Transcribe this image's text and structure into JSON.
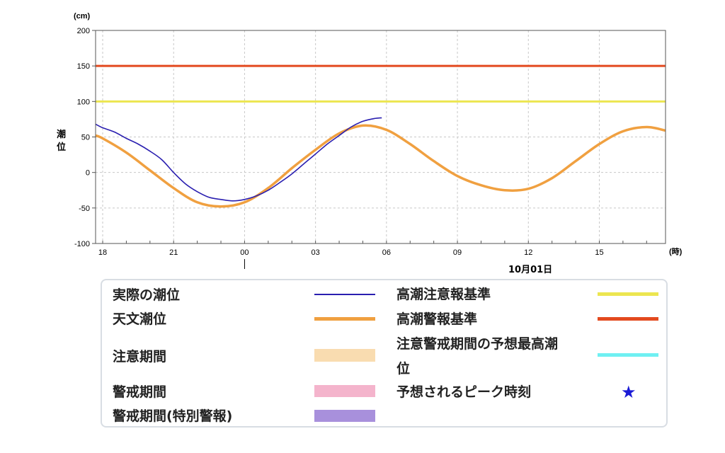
{
  "chart_data": {
    "type": "line",
    "y_unit": "(cm)",
    "x_unit": "(時)",
    "ylabel": "潮位",
    "ylim": [
      -100,
      200
    ],
    "yticks": [
      200,
      150,
      100,
      50,
      0,
      -50,
      -100
    ],
    "xlim": [
      17.7,
      41.8
    ],
    "xticks": [
      {
        "x": 18,
        "label": "18"
      },
      {
        "x": 21,
        "label": "21"
      },
      {
        "x": 24,
        "label": "00"
      },
      {
        "x": 27,
        "label": "03"
      },
      {
        "x": 30,
        "label": "06"
      },
      {
        "x": 33,
        "label": "09"
      },
      {
        "x": 36,
        "label": "12"
      },
      {
        "x": 39,
        "label": "15"
      }
    ],
    "date_label": "10月01日",
    "grid": true,
    "thresholds": [
      {
        "name": "高潮警報基準",
        "value": 150,
        "color": "#e34a1f"
      },
      {
        "name": "高潮注意報基準",
        "value": 100,
        "color": "#ece650"
      }
    ],
    "series": [
      {
        "name": "天文潮位",
        "color": "#f0a040",
        "x": [
          17.7,
          18,
          19,
          20,
          21,
          22,
          23,
          24,
          25,
          26,
          27,
          28,
          29,
          30,
          31,
          32,
          33,
          34,
          35,
          36,
          37,
          38,
          39,
          40,
          41,
          41.8
        ],
        "y": [
          52,
          48,
          28,
          3,
          -22,
          -42,
          -48,
          -42,
          -22,
          6,
          32,
          55,
          66,
          60,
          40,
          16,
          -5,
          -18,
          -25,
          -23,
          -8,
          16,
          40,
          58,
          64,
          59
        ]
      },
      {
        "name": "実際の潮位",
        "color": "#2a1fb0",
        "x": [
          17.7,
          18,
          18.5,
          19,
          19.5,
          20,
          20.5,
          21,
          21.5,
          22,
          22.5,
          23,
          23.5,
          24,
          24.5,
          25,
          25.5,
          26,
          26.5,
          27,
          27.5,
          28,
          28.5,
          29,
          29.5,
          29.8
        ],
        "y": [
          68,
          63,
          57,
          48,
          40,
          30,
          18,
          0,
          -16,
          -27,
          -35,
          -38,
          -40,
          -38,
          -33,
          -25,
          -14,
          -2,
          12,
          26,
          40,
          52,
          64,
          72,
          76,
          77
        ]
      }
    ]
  },
  "legend": {
    "items": [
      {
        "label": "実際の潮位",
        "color": "#2a1fb0"
      },
      {
        "label": "天文潮位",
        "color": "#f0a040"
      },
      {
        "label": "注意期間",
        "color": "#f9dcb0"
      },
      {
        "label": "警戒期間",
        "color": "#f4b4cc"
      },
      {
        "label": "警戒期間(特別警報)",
        "color": "#a890dc"
      },
      {
        "label": "高潮注意報基準",
        "color": "#ece650"
      },
      {
        "label": "高潮警報基準",
        "color": "#e34a1f"
      },
      {
        "label": "注意警戒期間の予想最高潮",
        "label2": "位",
        "color": "#6ff0f2"
      },
      {
        "label": "予想されるピーク時刻",
        "icon": "star-icon",
        "color": "#1a1ad6"
      }
    ]
  }
}
